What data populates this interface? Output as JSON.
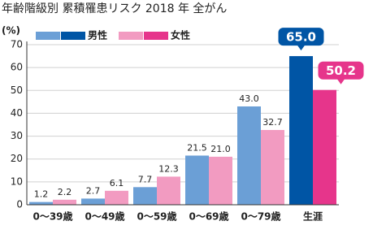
{
  "chart_data": {
    "type": "bar",
    "title": "年齢階級別 累積罹患リスク 2018 年 全がん",
    "y_label": "(%)",
    "categories": [
      "0〜39歳",
      "0〜49歳",
      "0〜59歳",
      "0〜69歳",
      "0〜79歳",
      "生涯"
    ],
    "series": [
      {
        "name": "男性",
        "colors": [
          "#6b9fd6",
          "#6b9fd6",
          "#6b9fd6",
          "#6b9fd6",
          "#6b9fd6",
          "#0055a5"
        ],
        "values": [
          1.2,
          2.7,
          7.7,
          21.5,
          43.0,
          65.0
        ],
        "value_labels": [
          "1.2",
          "2.7",
          "7.7",
          "21.5",
          "43.0",
          "65.0"
        ]
      },
      {
        "name": "女性",
        "colors": [
          "#f29bc1",
          "#f29bc1",
          "#f29bc1",
          "#f29bc1",
          "#f29bc1",
          "#e6358b"
        ],
        "values": [
          2.2,
          6.1,
          12.3,
          21.0,
          32.7,
          50.2
        ],
        "value_labels": [
          "2.2",
          "6.1",
          "12.3",
          "21.0",
          "32.7",
          "50.2"
        ]
      }
    ],
    "ylim": [
      0,
      70
    ],
    "yticks": [
      0,
      10,
      20,
      30,
      40,
      50,
      60,
      70
    ],
    "grid": true
  }
}
